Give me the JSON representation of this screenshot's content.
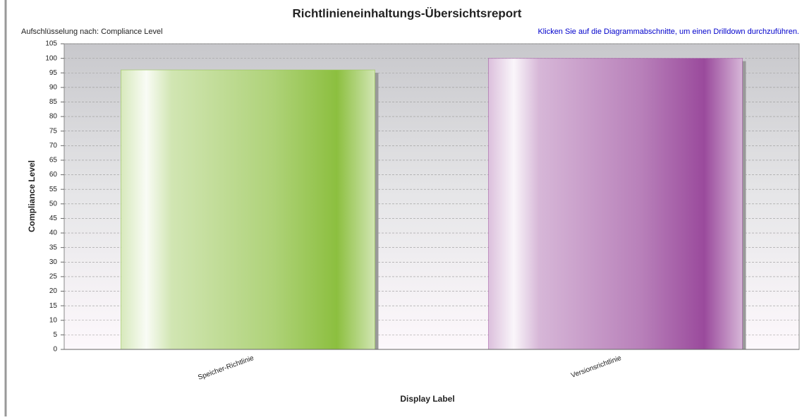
{
  "chart_data": {
    "type": "bar",
    "title": "Richtlinieneinhaltungs-Übersichtsreport",
    "subtitle": "Aufschlüsselung nach: Compliance Level",
    "annotation": "Klicken Sie auf die Diagrammabschnitte, um einen Drilldown durchzuführen.",
    "x_label": "Display Label",
    "y_label": "Compliance Level",
    "categories": [
      "Speicher-Richtlinie",
      "Versionsrichtlinie"
    ],
    "values": [
      96,
      100
    ],
    "colors": [
      "#8cbf3f",
      "#9a4a9c"
    ],
    "ylim": [
      0,
      105
    ],
    "yticks": [
      0,
      5,
      10,
      15,
      20,
      25,
      30,
      35,
      40,
      45,
      50,
      55,
      60,
      65,
      70,
      75,
      80,
      85,
      90,
      95,
      100,
      105
    ],
    "grid": true
  }
}
